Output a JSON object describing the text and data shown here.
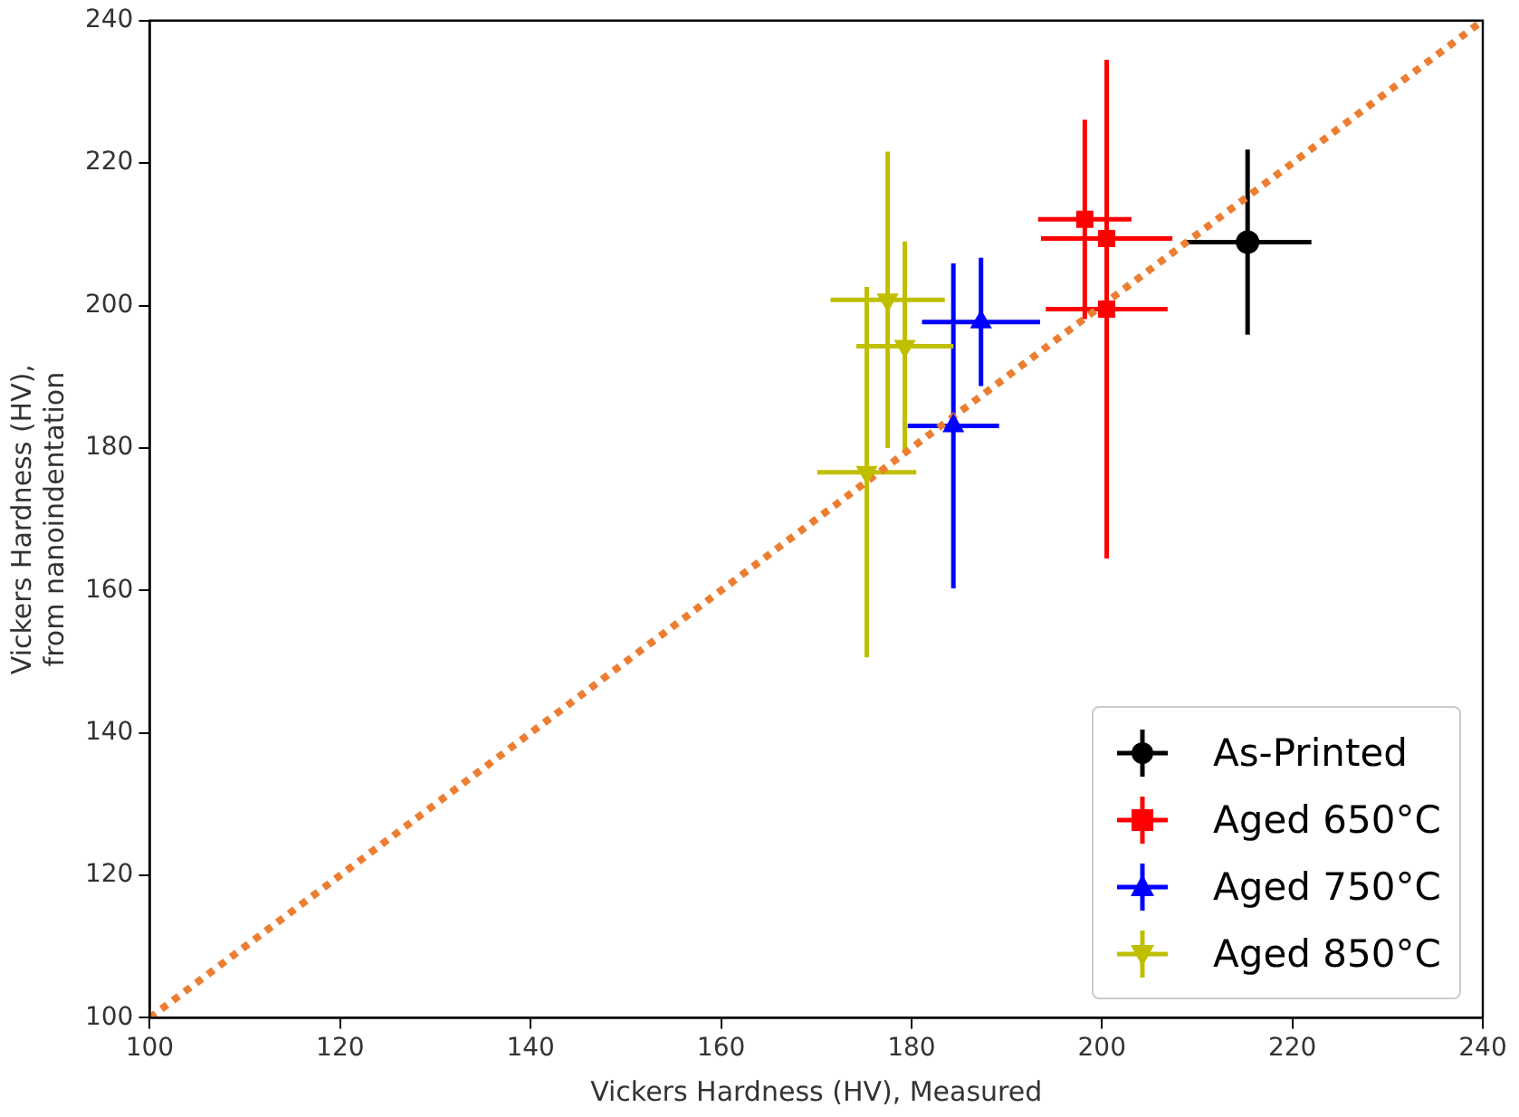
{
  "chart_data": {
    "type": "scatter",
    "xlabel": "Vickers Hardness (HV), Measured",
    "ylabel": "Vickers Hardness (HV),\nfrom nanoindentation",
    "xlim": [
      100,
      240
    ],
    "xticks": [
      100,
      120,
      140,
      160,
      180,
      200,
      220,
      240
    ],
    "ylim": [
      100,
      240
    ],
    "yticks": [
      100,
      120,
      140,
      160,
      180,
      200,
      220,
      240
    ],
    "grid": false,
    "legend": "bottom right",
    "series": [
      {
        "name": "As-Printed",
        "color": "#000000",
        "marker": "circle",
        "x": [
          215.3
        ],
        "values": [
          208.9
        ],
        "errors": [
          13
        ],
        "xerrors": [
          6.7
        ]
      },
      {
        "name": "Aged 650°C",
        "color": "#ff0000",
        "marker": "square",
        "x": [
          198.2,
          200.5,
          200.5
        ],
        "values": [
          212.1,
          209.4,
          199.5
        ],
        "errors": [
          14,
          null,
          35
        ],
        "xerrors": [
          4.9,
          6.9,
          6.4
        ]
      },
      {
        "name": "Aged 750°C",
        "color": "#0000ff",
        "marker": "triangle",
        "x": [
          187.3,
          184.4
        ],
        "values": [
          197.7,
          183.1
        ],
        "errors": [
          9,
          22.8
        ],
        "xerrors": [
          6.2,
          4.8
        ]
      },
      {
        "name": "Aged 850°C",
        "color": "#bfbf00",
        "marker": "triangle-down",
        "x": [
          177.5,
          179.3,
          175.3
        ],
        "values": [
          200.8,
          194.3,
          176.6
        ],
        "errors": [
          20.8,
          14.7,
          26
        ],
        "xerrors": [
          6,
          5.1,
          5.2
        ]
      },
      {
        "type": "line",
        "color": "#ed7d31",
        "line_style": "dotted",
        "marker": "none",
        "x": [
          100,
          240
        ],
        "values": [
          100,
          240
        ]
      }
    ]
  }
}
